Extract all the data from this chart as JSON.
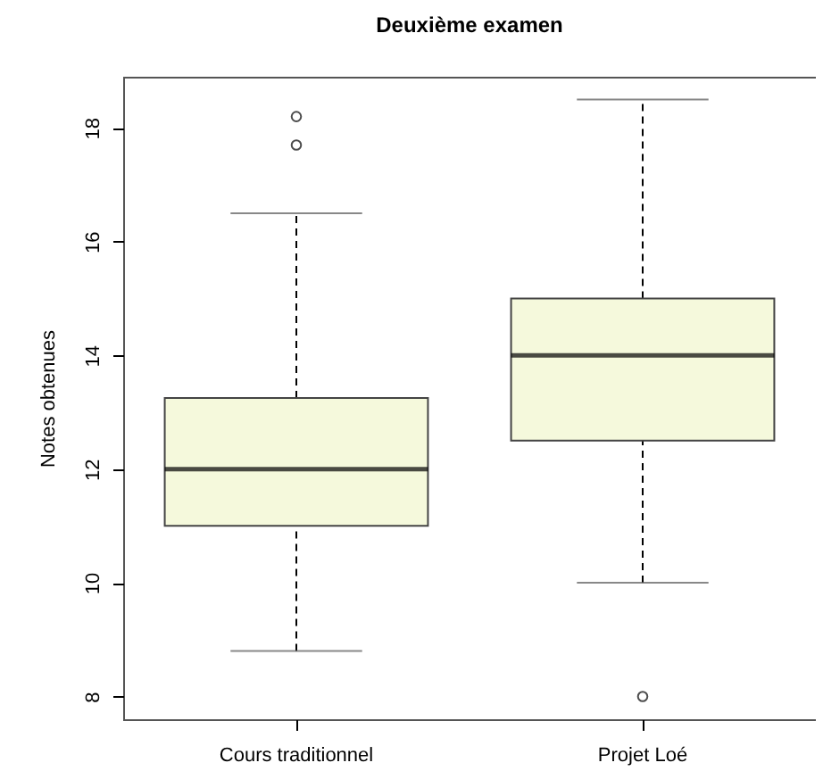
{
  "chart_data": {
    "type": "box",
    "title": "Deuxième examen",
    "ylabel": "Notes obtenues",
    "categories": [
      "Cours traditionnel",
      "Projet Loé"
    ],
    "series": [
      {
        "color": "#f5f9dc",
        "boxes": [
          {
            "low": 8.8,
            "q1": 11,
            "median": 12,
            "q3": 13.25,
            "high": 16.5,
            "outliers": [
              17.7,
              18.2
            ]
          },
          {
            "low": 10,
            "q1": 12.5,
            "median": 14,
            "q3": 15,
            "high": 18.5,
            "outliers": [
              8
            ]
          }
        ]
      }
    ],
    "ylim": [
      7.6,
      18.9
    ],
    "yticks": [
      8,
      10,
      12,
      14,
      16,
      18
    ],
    "grid": false
  }
}
